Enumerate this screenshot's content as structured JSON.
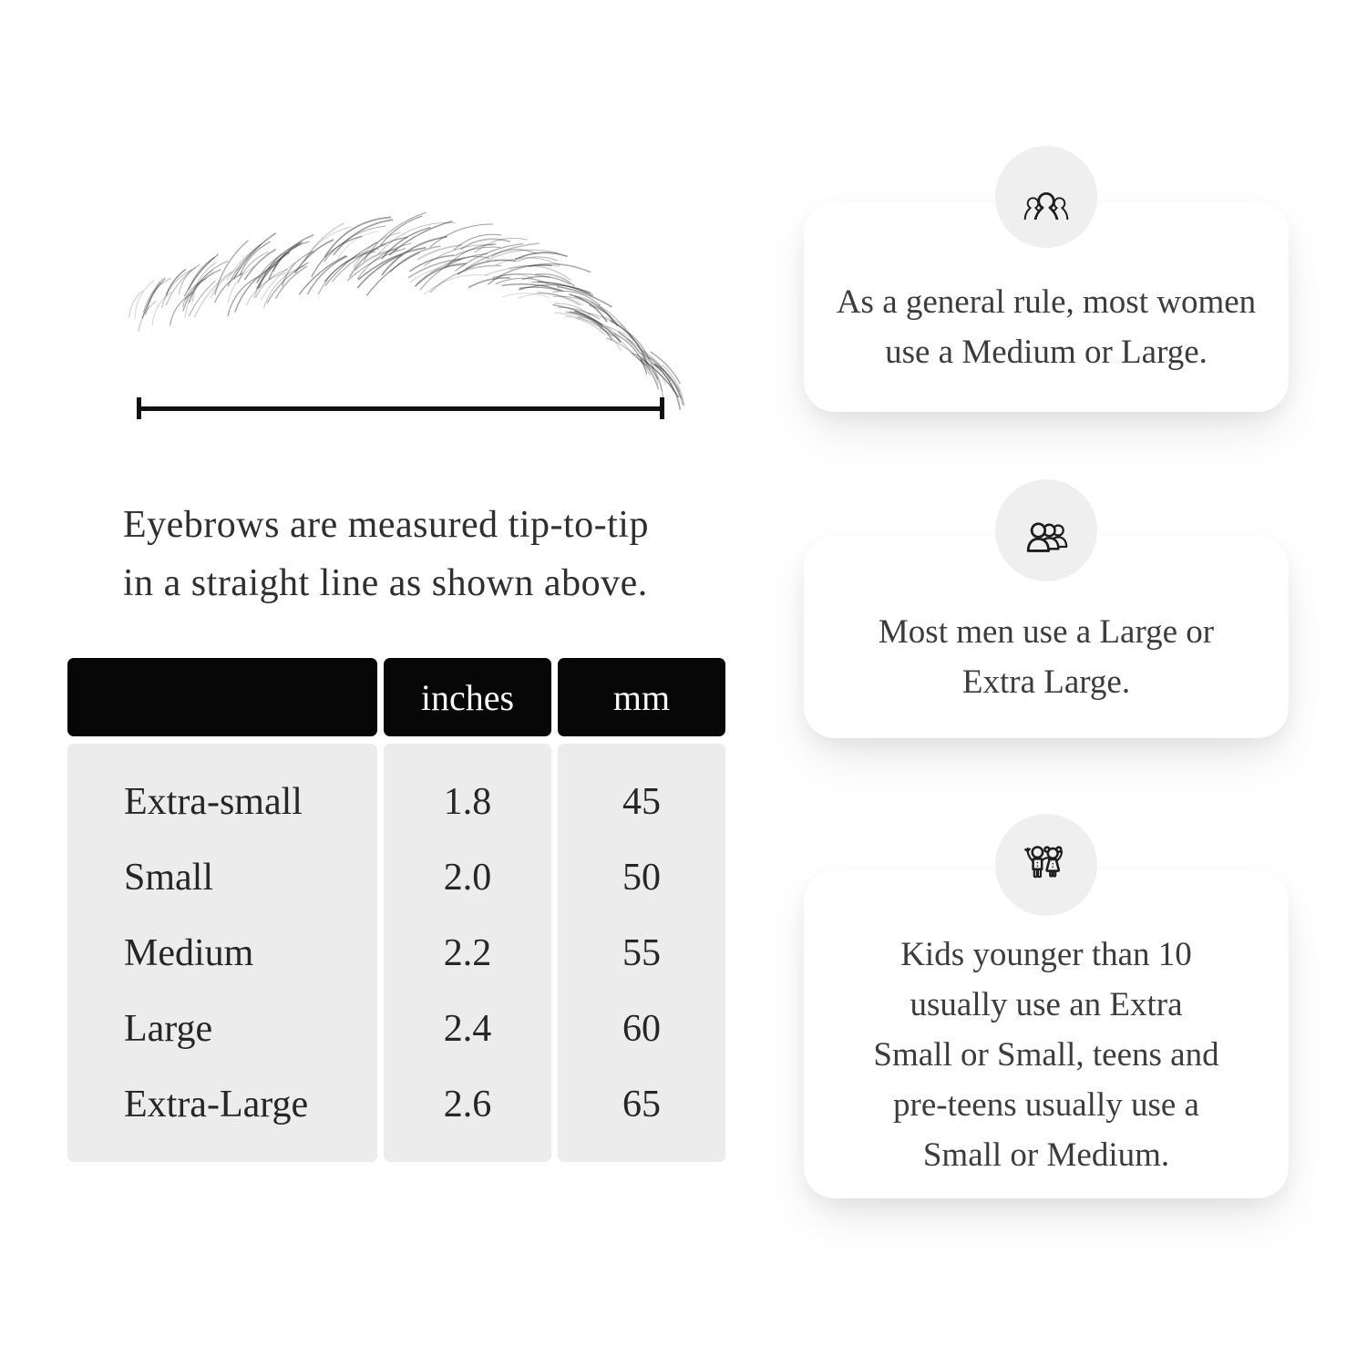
{
  "measure_section": {
    "caption_lines": [
      "Eyebrows are measured tip-to-tip",
      "in a straight line as shown above."
    ],
    "eyebrow_illustration": "hand-drawn eyebrow sketch",
    "ruler": "tip-to-tip measurement line"
  },
  "size_table": {
    "columns": [
      "",
      "inches",
      "mm"
    ],
    "rows": [
      {
        "label": "Extra-small",
        "inches": "1.8",
        "mm": "45"
      },
      {
        "label": "Small",
        "inches": "2.0",
        "mm": "50"
      },
      {
        "label": "Medium",
        "inches": "2.2",
        "mm": "55"
      },
      {
        "label": "Large",
        "inches": "2.4",
        "mm": "60"
      },
      {
        "label": "Extra-Large",
        "inches": "2.6",
        "mm": "65"
      }
    ]
  },
  "cards": [
    {
      "icon": "women-group-icon",
      "lines": [
        "As a general rule, most women",
        "use a Medium or Large."
      ]
    },
    {
      "icon": "men-group-icon",
      "lines": [
        "Most men use a Large or",
        "Extra Large."
      ]
    },
    {
      "icon": "kids-icon",
      "lines": [
        "Kids younger than 10",
        "usually use an Extra",
        "Small or Small, teens and",
        "pre-teens usually use a",
        "Small or Medium."
      ]
    }
  ],
  "colors": {
    "page_bg": "#ffffff",
    "table_header_bg": "#070707",
    "table_header_text": "#f7f7f7",
    "table_body_bg": "#ececec",
    "card_bg": "#ffffff",
    "icon_circle_bg": "#efefef",
    "ink": "#2e2e2e"
  }
}
